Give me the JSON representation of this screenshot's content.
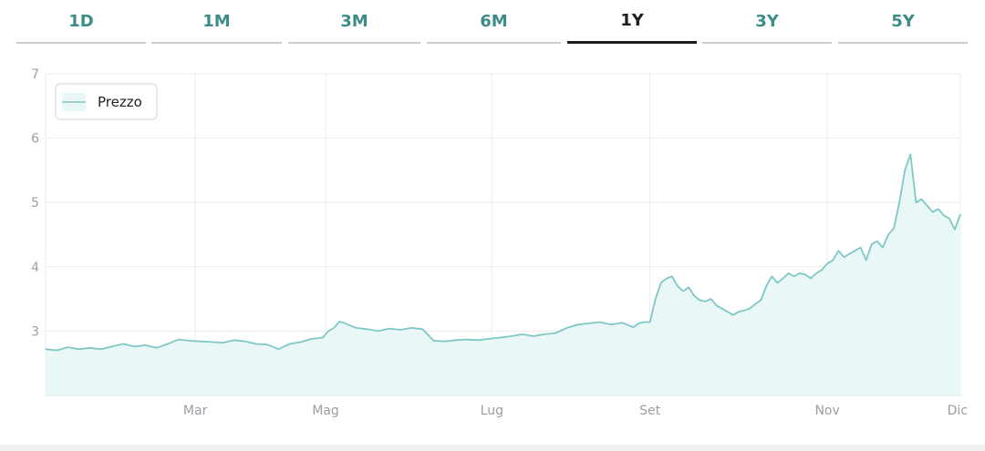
{
  "tabs": [
    {
      "label": "1D",
      "active": false
    },
    {
      "label": "1M",
      "active": false
    },
    {
      "label": "3M",
      "active": false
    },
    {
      "label": "6M",
      "active": false
    },
    {
      "label": "1Y",
      "active": true
    },
    {
      "label": "3Y",
      "active": false
    },
    {
      "label": "5Y",
      "active": false
    }
  ],
  "colors": {
    "line": "#7fc8c6",
    "area": "#e9f7f7",
    "tab_text": "#3d8c87",
    "tab_active": "#1d1d1d",
    "grid": "#ececec",
    "axis_text": "#9a9ea3"
  },
  "chart_data": {
    "type": "area",
    "legend": {
      "label": "Prezzo",
      "position": "top-left"
    },
    "grid": true,
    "ylim": [
      2,
      7
    ],
    "yticks": [
      3,
      4,
      5,
      6,
      7
    ],
    "xlim": [
      0,
      330
    ],
    "xticks": [
      {
        "x": 54,
        "label": "Mar"
      },
      {
        "x": 101,
        "label": "Mag"
      },
      {
        "x": 161,
        "label": "Lug"
      },
      {
        "x": 218,
        "label": "Set"
      },
      {
        "x": 282,
        "label": "Nov"
      },
      {
        "x": 330,
        "label": "Dic"
      }
    ],
    "series": [
      {
        "name": "Prezzo",
        "x": [
          0,
          4,
          8,
          12,
          16,
          20,
          24,
          28,
          32,
          36,
          40,
          44,
          48,
          52,
          56,
          60,
          64,
          68,
          72,
          76,
          80,
          84,
          88,
          92,
          96,
          100,
          102,
          104,
          106,
          108,
          112,
          116,
          120,
          124,
          128,
          132,
          136,
          140,
          144,
          148,
          152,
          156,
          160,
          164,
          168,
          172,
          176,
          180,
          184,
          188,
          192,
          196,
          200,
          204,
          208,
          212,
          214,
          216,
          218,
          220,
          222,
          224,
          226,
          228,
          230,
          232,
          234,
          236,
          238,
          240,
          242,
          244,
          246,
          248,
          250,
          252,
          254,
          256,
          258,
          260,
          262,
          264,
          266,
          268,
          270,
          272,
          274,
          276,
          278,
          280,
          282,
          284,
          286,
          288,
          290,
          292,
          294,
          296,
          298,
          300,
          302,
          304,
          306,
          308,
          310,
          312,
          314,
          316,
          318,
          320,
          322,
          324,
          326,
          328,
          330
        ],
        "values": [
          2.72,
          2.7,
          2.75,
          2.72,
          2.74,
          2.72,
          2.76,
          2.8,
          2.76,
          2.78,
          2.74,
          2.8,
          2.87,
          2.85,
          2.84,
          2.83,
          2.82,
          2.86,
          2.84,
          2.8,
          2.79,
          2.72,
          2.8,
          2.83,
          2.88,
          2.9,
          3.0,
          3.05,
          3.15,
          3.12,
          3.05,
          3.03,
          3.0,
          3.04,
          3.02,
          3.05,
          3.03,
          2.85,
          2.84,
          2.86,
          2.87,
          2.86,
          2.88,
          2.9,
          2.92,
          2.95,
          2.92,
          2.95,
          2.97,
          3.05,
          3.1,
          3.12,
          3.14,
          3.1,
          3.13,
          3.06,
          3.12,
          3.14,
          3.14,
          3.5,
          3.75,
          3.82,
          3.85,
          3.7,
          3.62,
          3.68,
          3.55,
          3.48,
          3.46,
          3.5,
          3.4,
          3.35,
          3.3,
          3.25,
          3.3,
          3.32,
          3.35,
          3.42,
          3.48,
          3.7,
          3.85,
          3.75,
          3.82,
          3.9,
          3.85,
          3.9,
          3.88,
          3.82,
          3.9,
          3.95,
          4.05,
          4.1,
          4.25,
          4.15,
          4.2,
          4.25,
          4.3,
          4.1,
          4.35,
          4.4,
          4.3,
          4.5,
          4.6,
          5.0,
          5.5,
          5.75,
          5.0,
          5.05,
          4.95,
          4.85,
          4.9,
          4.8,
          4.75,
          4.58,
          4.82
        ]
      }
    ]
  }
}
